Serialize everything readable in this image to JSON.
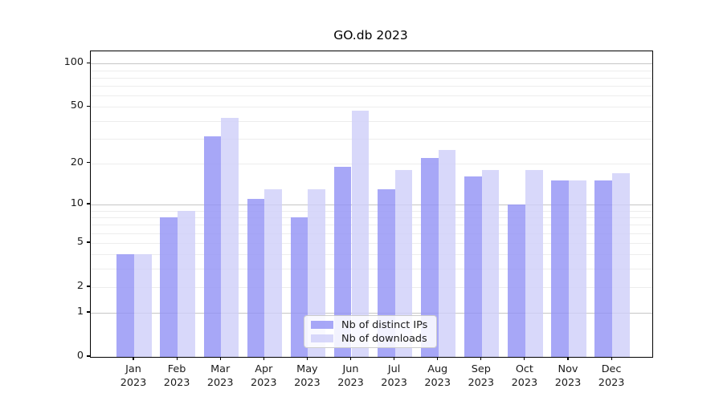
{
  "title": "GO.db 2023",
  "legend": {
    "items": [
      {
        "label": "Nb of distinct IPs",
        "color": "rgba(145,145,245,0.8)"
      },
      {
        "label": "Nb of downloads",
        "color": "rgba(206,206,249,0.8)"
      }
    ]
  },
  "colors": {
    "bar_distinct_ips": "#a7a7f7",
    "bar_downloads": "#d8d8fa",
    "major_grid": "#c6c6c6",
    "minor_grid": "#ededed",
    "axis": "#000000",
    "text": "#1a1a1a"
  },
  "chart_data": {
    "type": "bar",
    "title": "GO.db 2023",
    "categories": [
      "Jan",
      "Feb",
      "Mar",
      "Apr",
      "May",
      "Jun",
      "Jul",
      "Aug",
      "Sep",
      "Oct",
      "Nov",
      "Dec"
    ],
    "category_year": "2023",
    "series": [
      {
        "name": "Nb of distinct IPs",
        "color": "rgba(145,145,245,0.8)",
        "values": [
          4,
          8,
          31,
          11,
          8,
          19,
          13,
          22,
          16,
          10,
          15,
          15
        ]
      },
      {
        "name": "Nb of downloads",
        "color": "rgba(206,206,249,0.8)",
        "values": [
          4,
          9,
          42,
          13,
          13,
          47,
          18,
          25,
          18,
          18,
          15,
          17
        ]
      }
    ],
    "xlabel": "",
    "ylabel": "",
    "yscale": "log1p",
    "ylim": [
      0,
      121
    ],
    "yticks": [
      0,
      1,
      2,
      5,
      10,
      20,
      50,
      100
    ],
    "major_gridlines": [
      1,
      10,
      100
    ],
    "minor_gridlines": [
      2,
      3,
      4,
      5,
      6,
      7,
      8,
      9,
      20,
      30,
      40,
      50,
      60,
      70,
      80,
      90
    ],
    "grid": true,
    "legend_position": "bottom-center"
  }
}
